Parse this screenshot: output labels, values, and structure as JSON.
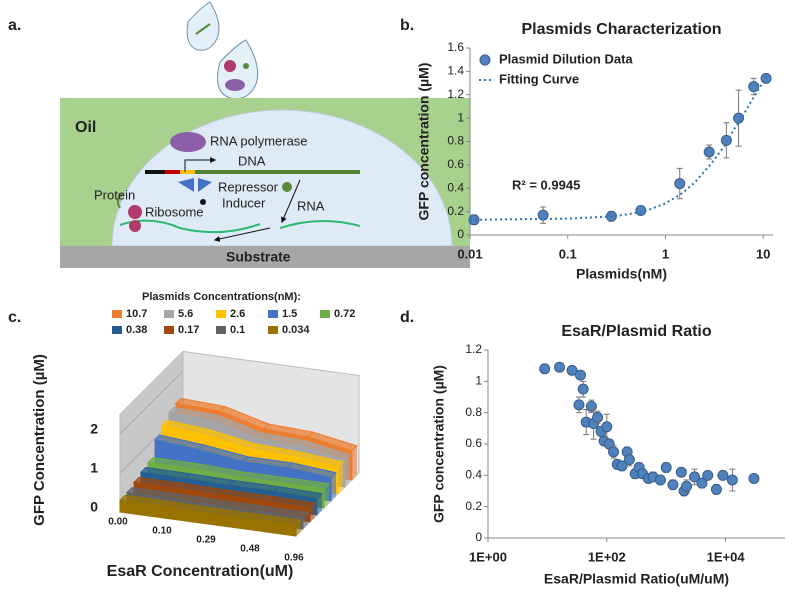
{
  "panel_labels": [
    "a.",
    "b.",
    "c.",
    "d."
  ],
  "diagram": {
    "oil": "Oil",
    "rna_polymerase": "RNA polymerase",
    "dna": "DNA",
    "repressor": "Repressor",
    "inducer": "Inducer",
    "rna": "RNA",
    "protein": "Protein",
    "ribosome": "Ribosome",
    "substrate": "Substrate"
  },
  "chart_data": [
    {
      "type": "scatter",
      "title": "Plasmids Characterization",
      "x_label": "Plasmids(nM)",
      "y_label": "GFP concentration (µM)",
      "log_x": true,
      "xlim": [
        0.01,
        12.6
      ],
      "xticks": [
        0.01,
        0.1,
        1,
        10
      ],
      "ylim": [
        0,
        1.6
      ],
      "yticks": [
        0,
        0.2,
        0.4,
        0.6,
        0.8,
        1,
        1.2,
        1.4,
        1.6
      ],
      "annotation": "R² = 0.9945",
      "series": [
        {
          "name": "Plasmid Dilution Data",
          "color": "#4f81bd",
          "style": "marker",
          "x": [
            0.011,
            0.056,
            0.28,
            0.56,
            1.4,
            2.8,
            4.2,
            5.6,
            8,
            10.7
          ],
          "values": [
            0.13,
            0.17,
            0.16,
            0.21,
            0.44,
            0.71,
            0.81,
            1.0,
            1.27,
            1.34
          ],
          "errors": [
            0.04,
            0.07,
            0.04,
            0.02,
            0.13,
            0.06,
            0.15,
            0.24,
            0.07,
            0.02
          ]
        },
        {
          "name": "Fitting Curve",
          "color": "#2e75b6",
          "style": "dotted",
          "x": [
            0.01,
            0.03,
            0.1,
            0.3,
            0.6,
            1,
            1.5,
            2,
            3,
            4,
            5,
            6,
            8,
            10,
            11
          ],
          "values": [
            0.13,
            0.135,
            0.14,
            0.16,
            0.2,
            0.27,
            0.36,
            0.45,
            0.62,
            0.76,
            0.9,
            1.0,
            1.18,
            1.31,
            1.37
          ]
        }
      ]
    },
    {
      "type": "ribbon3d",
      "legend_title": "Plasmids Concentrations(nM):",
      "x_label": "EsaR Concentration(uM)",
      "y_label": "GFP Concentration (µM)",
      "categories": [
        "0.00",
        "0.10",
        "0.29",
        "0.48",
        "0.96"
      ],
      "ylim": [
        0,
        2.5
      ],
      "yticks": [
        0,
        1,
        2
      ],
      "series": [
        {
          "name": "10.7",
          "color": "#ed7d31",
          "values": [
            1.35,
            1.3,
            1.0,
            0.95,
            0.75
          ]
        },
        {
          "name": "5.6",
          "color": "#a5a5a5",
          "values": [
            1.3,
            1.25,
            0.95,
            0.9,
            0.7
          ]
        },
        {
          "name": "2.6",
          "color": "#ffc000",
          "values": [
            1.15,
            1.05,
            0.85,
            0.8,
            0.7
          ]
        },
        {
          "name": "1.5",
          "color": "#4472c4",
          "values": [
            0.95,
            0.85,
            0.7,
            0.7,
            0.6
          ]
        },
        {
          "name": "0.72",
          "color": "#70ad47",
          "values": [
            0.55,
            0.55,
            0.5,
            0.5,
            0.5
          ]
        },
        {
          "name": "0.38",
          "color": "#255e91",
          "values": [
            0.48,
            0.47,
            0.45,
            0.45,
            0.42
          ]
        },
        {
          "name": "0.17",
          "color": "#9e480e",
          "values": [
            0.4,
            0.4,
            0.38,
            0.38,
            0.36
          ]
        },
        {
          "name": "0.1",
          "color": "#636363",
          "values": [
            0.32,
            0.32,
            0.3,
            0.3,
            0.3
          ]
        },
        {
          "name": "0.034",
          "color": "#997300",
          "values": [
            0.3,
            0.3,
            0.28,
            0.28,
            0.28
          ]
        }
      ]
    },
    {
      "type": "scatter",
      "title": "EsaR/Plasmid Ratio",
      "x_label": "EsaR/Plasmid Ratio(uM/uM)",
      "y_label": "GFP concentration (µM)",
      "log_x": true,
      "xlim": [
        1,
        100000
      ],
      "xticks": [
        {
          "value": 1,
          "label": "1E+00"
        },
        {
          "value": 100,
          "label": "1E+02"
        },
        {
          "value": 10000,
          "label": "1E+04"
        }
      ],
      "ylim": [
        0,
        1.2
      ],
      "yticks": [
        0,
        0.2,
        0.4,
        0.6,
        0.8,
        1,
        1.2
      ],
      "series": [
        {
          "name": null,
          "color": "#4f81bd",
          "style": "marker",
          "x": [
            9,
            16,
            26,
            34,
            36,
            40,
            45,
            55,
            60,
            70,
            80,
            90,
            100,
            110,
            130,
            150,
            180,
            220,
            240,
            300,
            350,
            400,
            500,
            600,
            800,
            1000,
            1300,
            1800,
            2000,
            2200,
            3000,
            4000,
            5000,
            7000,
            9000,
            13000,
            30000
          ],
          "values": [
            1.08,
            1.09,
            1.07,
            0.85,
            1.04,
            0.95,
            0.74,
            0.84,
            0.73,
            0.77,
            0.68,
            0.62,
            0.71,
            0.6,
            0.55,
            0.47,
            0.46,
            0.55,
            0.5,
            0.41,
            0.45,
            0.41,
            0.38,
            0.39,
            0.37,
            0.45,
            0.34,
            0.42,
            0.3,
            0.33,
            0.39,
            0.35,
            0.4,
            0.31,
            0.4,
            0.37,
            0.38
          ],
          "errors": [
            0,
            0,
            0,
            0.05,
            0,
            0.05,
            0.08,
            0.04,
            0.1,
            0.04,
            0.03,
            0.03,
            0.08,
            0.03,
            0.04,
            0.03,
            0.03,
            0.03,
            0.04,
            0.03,
            0.03,
            0.03,
            0.02,
            0.03,
            0.02,
            0.03,
            0.03,
            0.02,
            0.03,
            0.04,
            0.05,
            0.03,
            0.02,
            0.03,
            0.02,
            0.07,
            0.02
          ]
        }
      ]
    }
  ]
}
